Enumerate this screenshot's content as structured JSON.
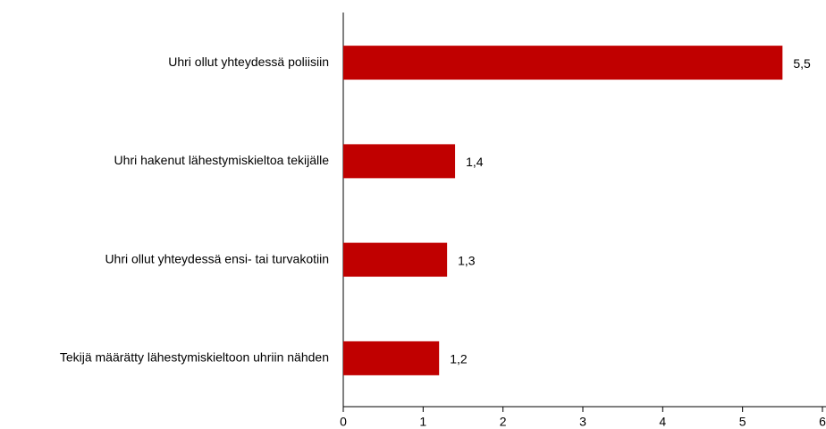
{
  "chart_data": {
    "type": "bar",
    "orientation": "horizontal",
    "categories": [
      "Uhri ollut yhteydessä poliisiin",
      "Uhri hakenut lähestymiskieltoa tekijälle",
      "Uhri ollut yhteydessä ensi- tai turvakotiin",
      "Tekijä määrätty lähestymiskieltoon uhriin nähden"
    ],
    "values": [
      5.5,
      1.4,
      1.3,
      1.2
    ],
    "value_labels": [
      "5,5",
      "1,4",
      "1,3",
      "1,2"
    ],
    "color": "#c00000",
    "xlim": [
      0,
      6
    ],
    "xticks": [
      0,
      1,
      2,
      3,
      4,
      5,
      6
    ],
    "grid": false
  }
}
